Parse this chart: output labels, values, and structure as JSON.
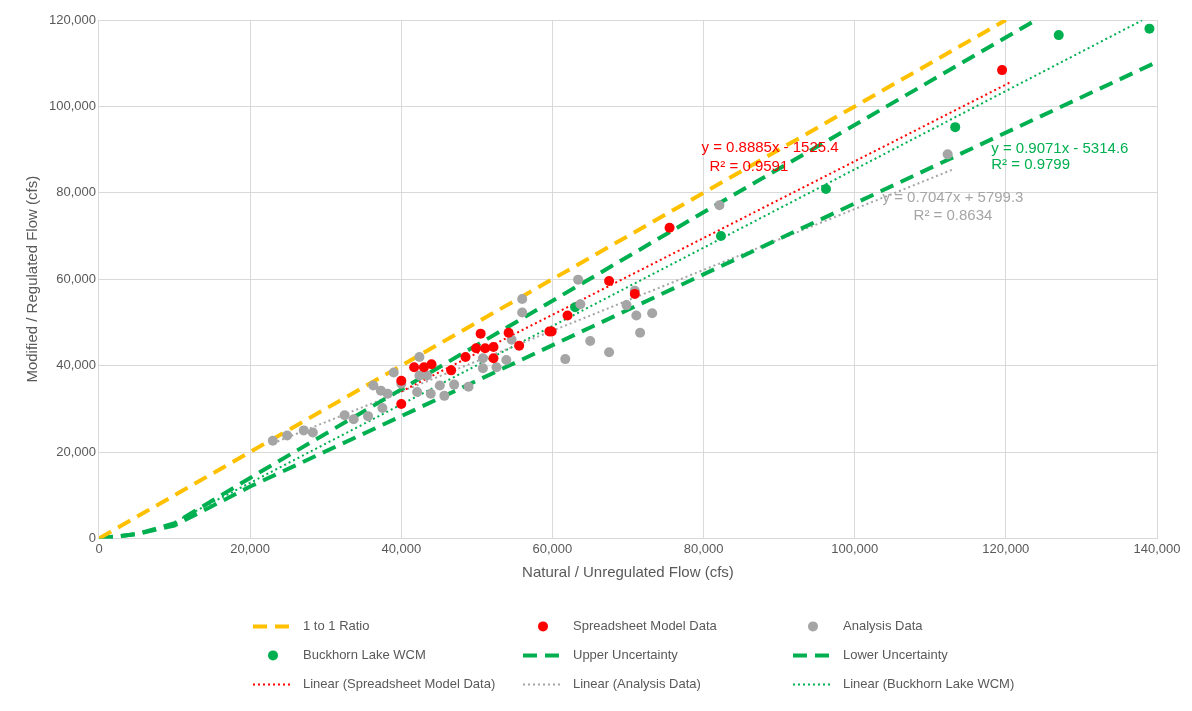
{
  "chart_data": {
    "type": "scatter",
    "xlabel": "Natural / Unregulated Flow (cfs)",
    "ylabel": "Modified / Regulated Flow (cfs)",
    "xlim": [
      0,
      140000
    ],
    "ylim": [
      0,
      120000
    ],
    "xticks": [
      {
        "value": 0,
        "label": "0"
      },
      {
        "value": 20000,
        "label": "20,000"
      },
      {
        "value": 40000,
        "label": "40,000"
      },
      {
        "value": 60000,
        "label": "60,000"
      },
      {
        "value": 80000,
        "label": "80,000"
      },
      {
        "value": 100000,
        "label": "100,000"
      },
      {
        "value": 120000,
        "label": "120,000"
      },
      {
        "value": 140000,
        "label": "140,000"
      }
    ],
    "yticks": [
      {
        "value": 0,
        "label": "0"
      },
      {
        "value": 20000,
        "label": "20,000"
      },
      {
        "value": 40000,
        "label": "40,000"
      },
      {
        "value": 60000,
        "label": "60,000"
      },
      {
        "value": 80000,
        "label": "80,000"
      },
      {
        "value": 100000,
        "label": "100,000"
      },
      {
        "value": 120000,
        "label": "120,000"
      }
    ],
    "grid": true,
    "legend": "bottom",
    "series": [
      {
        "name": "1 to 1 Ratio",
        "type": "line",
        "color": "#ffc000",
        "line_style": "dashed",
        "marker": "none",
        "x": [
          0,
          120000
        ],
        "values": [
          0,
          120000
        ]
      },
      {
        "name": "Spreadsheet Model Data",
        "type": "scatter",
        "color": "#ff0000",
        "marker": "circle",
        "x": [
          40000,
          40000,
          41700,
          43000,
          44000,
          46600,
          48500,
          50500,
          49900,
          51100,
          52200,
          52200,
          54200,
          55600,
          59600,
          59900,
          62000,
          67500,
          70900,
          75500,
          119500
        ],
        "values": [
          31100,
          36500,
          39600,
          39600,
          40300,
          38900,
          42000,
          47400,
          44000,
          44000,
          44300,
          41700,
          47600,
          44600,
          47900,
          47900,
          51600,
          59600,
          56600,
          71900,
          108400
        ]
      },
      {
        "name": "Analysis Data",
        "type": "scatter",
        "color": "#a5a5a5",
        "marker": "circle",
        "x": [
          23000,
          24900,
          27100,
          28300,
          32500,
          33700,
          35600,
          37500,
          36300,
          37300,
          38200,
          39000,
          40000,
          42400,
          42400,
          43400,
          42100,
          43900,
          45100,
          45700,
          47000,
          48900,
          50800,
          50800,
          52600,
          53900,
          54600,
          56000,
          56000,
          61700,
          63400,
          63700,
          65000,
          67500,
          69800,
          70900,
          71100,
          71600,
          73200,
          82100,
          112300
        ],
        "values": [
          22600,
          23800,
          25000,
          24500,
          28500,
          27600,
          28300,
          30200,
          35400,
          34200,
          33500,
          38400,
          35800,
          42000,
          37700,
          37700,
          33900,
          33500,
          35400,
          33000,
          35600,
          35100,
          41700,
          39400,
          39600,
          41300,
          46000,
          55400,
          52300,
          41500,
          59900,
          54200,
          45700,
          43100,
          54000,
          57300,
          51600,
          47600,
          52100,
          77100,
          88900
        ]
      },
      {
        "name": "Buckhorn Lake WCM",
        "type": "scatter",
        "color": "#00b050",
        "marker": "circle",
        "x": [
          63000,
          82300,
          96200,
          113300,
          127000,
          139000
        ],
        "values": [
          53500,
          70000,
          80900,
          95200,
          116500,
          118000
        ]
      },
      {
        "name": "Upper Uncertainty",
        "type": "line",
        "color": "#00b050",
        "line_style": "dashed",
        "marker": "none",
        "x": [
          0,
          5000,
          10000,
          20000,
          40000,
          80000,
          124000
        ],
        "values": [
          0,
          1000,
          3500,
          14000,
          34500,
          75500,
          120000
        ]
      },
      {
        "name": "Lower Uncertainty",
        "type": "line",
        "color": "#00b050",
        "line_style": "dashed",
        "marker": "none",
        "x": [
          0,
          5000,
          10000,
          20000,
          40000,
          113000,
          140000
        ],
        "values": [
          0,
          1000,
          3000,
          12000,
          28300,
          88200,
          110300
        ]
      },
      {
        "name": "Linear (Spreadsheet Model Data)",
        "type": "line",
        "color": "#ff0000",
        "line_style": "dotted",
        "marker": "none",
        "x": [
          40000,
          120500
        ],
        "values": [
          34000,
          105500
        ]
      },
      {
        "name": "Linear (Analysis Data)",
        "type": "line",
        "color": "#a5a5a5",
        "line_style": "dotted",
        "marker": "none",
        "x": [
          23000,
          113000
        ],
        "values": [
          22000,
          85400
        ]
      },
      {
        "name": "Linear (Buckhorn Lake WCM)",
        "type": "line",
        "color": "#00b050",
        "line_style": "dotted",
        "marker": "none",
        "x": [
          11000,
          138000
        ],
        "values": [
          4700,
          119900
        ]
      }
    ],
    "annotations": [
      {
        "text": "y = 0.8885x - 1525.4",
        "x": 88800,
        "y": 90300
      },
      {
        "text": "R² = 0.9591",
        "x": 86000,
        "y": 86000
      },
      {
        "text": "y = 0.7047x + 5799.3",
        "x": 113000,
        "y": 85400
      },
      {
        "text": "R² = 0.8634",
        "x": 113000,
        "y": 85400
      },
      {
        "text": "y = 0.9071x - 5314.6",
        "x": 113300,
        "y": 95200
      },
      "R² = 0.9799"
    ]
  }
}
